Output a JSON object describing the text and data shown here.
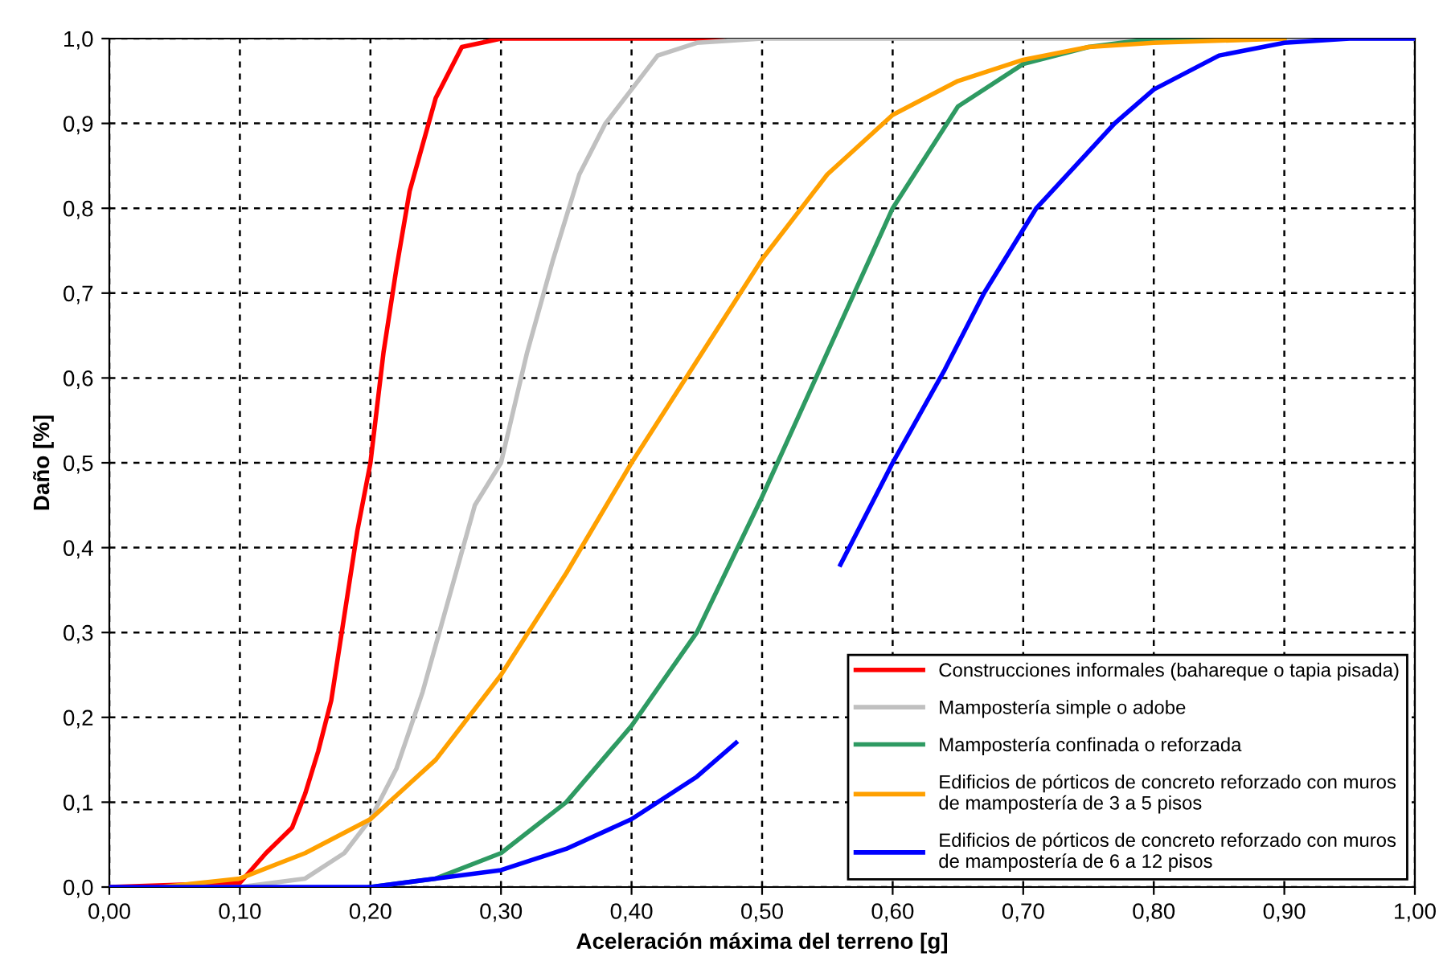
{
  "chart_data": {
    "type": "line",
    "xlabel": "Aceleración máxima del terreno [g]",
    "ylabel": "Daño [%]",
    "xlim": [
      0,
      1
    ],
    "ylim": [
      0,
      1
    ],
    "xticks": [
      {
        "value": 0,
        "label": "0,00"
      },
      {
        "value": 0.1,
        "label": "0,10"
      },
      {
        "value": 0.2,
        "label": "0,20"
      },
      {
        "value": 0.3,
        "label": "0,30"
      },
      {
        "value": 0.4,
        "label": "0,40"
      },
      {
        "value": 0.5,
        "label": "0,50"
      },
      {
        "value": 0.6,
        "label": "0,60"
      },
      {
        "value": 0.7,
        "label": "0,70"
      },
      {
        "value": 0.8,
        "label": "0,80"
      },
      {
        "value": 0.9,
        "label": "0,90"
      },
      {
        "value": 1,
        "label": "1,00"
      }
    ],
    "yticks": [
      {
        "value": 0,
        "label": "0,0"
      },
      {
        "value": 0.1,
        "label": "0,1"
      },
      {
        "value": 0.2,
        "label": "0,2"
      },
      {
        "value": 0.3,
        "label": "0,3"
      },
      {
        "value": 0.4,
        "label": "0,4"
      },
      {
        "value": 0.5,
        "label": "0,5"
      },
      {
        "value": 0.6,
        "label": "0,6"
      },
      {
        "value": 0.7,
        "label": "0,7"
      },
      {
        "value": 0.8,
        "label": "0,8"
      },
      {
        "value": 0.9,
        "label": "0,9"
      },
      {
        "value": 1,
        "label": "1,0"
      }
    ],
    "grid": true,
    "legend": "bottom right",
    "line_style": "solid",
    "marker": "none",
    "series": [
      {
        "name": "Construcciones informales (bahareque o tapia pisada)",
        "color": "#ff0000",
        "x": [
          0,
          0.1,
          0.12,
          0.14,
          0.15,
          0.16,
          0.17,
          0.18,
          0.19,
          0.2,
          0.21,
          0.22,
          0.23,
          0.25,
          0.27,
          0.3,
          0.47
        ],
        "values": [
          0,
          0.005,
          0.04,
          0.07,
          0.11,
          0.16,
          0.22,
          0.32,
          0.42,
          0.5,
          0.63,
          0.73,
          0.82,
          0.93,
          0.99,
          1.0,
          1.0
        ]
      },
      {
        "name": "Mampostería simple o adobe",
        "color": "#c0c0c0",
        "x": [
          0.05,
          0.1,
          0.15,
          0.18,
          0.2,
          0.22,
          0.24,
          0.26,
          0.28,
          0.3,
          0.32,
          0.34,
          0.36,
          0.38,
          0.4,
          0.42,
          0.45,
          0.5,
          1.0
        ],
        "values": [
          0,
          0,
          0.01,
          0.04,
          0.08,
          0.14,
          0.23,
          0.34,
          0.45,
          0.5,
          0.63,
          0.74,
          0.84,
          0.9,
          0.94,
          0.98,
          0.995,
          1.0,
          1.0
        ]
      },
      {
        "name": "Mampostería confinada o reforzada",
        "color": "#2e9a62",
        "x": [
          0.2,
          0.25,
          0.3,
          0.35,
          0.4,
          0.45,
          0.5,
          0.55,
          0.6,
          0.65,
          0.7,
          0.75,
          0.8,
          0.9
        ],
        "values": [
          0,
          0.01,
          0.04,
          0.1,
          0.19,
          0.3,
          0.46,
          0.63,
          0.8,
          0.92,
          0.97,
          0.99,
          1.0,
          1.0
        ]
      },
      {
        "name": "Edificios de pórticos de concreto reforzado con muros\nde mampostería de 3 a 5 pisos",
        "color": "#ffa000",
        "x": [
          0.04,
          0.1,
          0.15,
          0.2,
          0.25,
          0.3,
          0.35,
          0.4,
          0.45,
          0.5,
          0.55,
          0.6,
          0.65,
          0.7,
          0.75,
          0.8,
          0.9
        ],
        "values": [
          0,
          0.01,
          0.04,
          0.08,
          0.15,
          0.25,
          0.37,
          0.5,
          0.62,
          0.74,
          0.84,
          0.91,
          0.95,
          0.975,
          0.99,
          0.995,
          1.0
        ]
      },
      {
        "name": "Edificios de pórticos de concreto reforzado con muros\nde mampostería de 6 a 12 pisos",
        "color": "#0000ff",
        "x": [
          0,
          0.2,
          0.25,
          0.3,
          0.35,
          0.4,
          0.45,
          0.48,
          0.52,
          0.56,
          0.6,
          0.64,
          0.67,
          0.71,
          0.77,
          0.8,
          0.85,
          0.9,
          0.95,
          1.0
        ],
        "values": [
          0,
          0,
          0.01,
          0.02,
          0.045,
          0.08,
          0.13,
          0.17,
          null,
          0.38,
          0.5,
          0.61,
          0.7,
          0.8,
          0.9,
          0.94,
          0.98,
          0.995,
          1.0,
          1.0
        ]
      }
    ]
  }
}
